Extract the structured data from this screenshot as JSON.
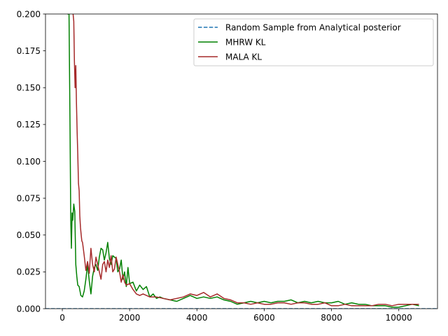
{
  "chart_data": {
    "type": "line",
    "title": "",
    "xlabel": "",
    "ylabel": "",
    "xlim": [
      -500,
      11150
    ],
    "ylim": [
      0,
      0.2
    ],
    "x_ticks": [
      0,
      2000,
      4000,
      6000,
      8000,
      10000
    ],
    "y_ticks": [
      0.0,
      0.025,
      0.05,
      0.075,
      0.1,
      0.125,
      0.15,
      0.175,
      0.2
    ],
    "x_tick_labels": [
      "0",
      "2000",
      "4000",
      "6000",
      "8000",
      "10000"
    ],
    "y_tick_labels": [
      "0.000",
      "0.025",
      "0.050",
      "0.075",
      "0.100",
      "0.125",
      "0.150",
      "0.175",
      "0.200"
    ],
    "grid": false,
    "legend_position": "top-right",
    "reference_line": {
      "name": "Random Sample from Analytical posterior",
      "value": 0.0,
      "style": "dashed",
      "color": "#1f77b4"
    },
    "series": [
      {
        "name": "MHRW KL",
        "color": "#008000",
        "x": [
          150,
          200,
          230,
          250,
          270,
          290,
          310,
          340,
          370,
          400,
          430,
          460,
          500,
          550,
          600,
          650,
          700,
          750,
          800,
          850,
          900,
          950,
          1000,
          1050,
          1100,
          1150,
          1200,
          1250,
          1300,
          1350,
          1400,
          1450,
          1500,
          1550,
          1600,
          1650,
          1700,
          1750,
          1800,
          1850,
          1900,
          1950,
          2000,
          2100,
          2200,
          2300,
          2400,
          2500,
          2600,
          2700,
          2800,
          2900,
          3000,
          3200,
          3400,
          3600,
          3800,
          4000,
          4200,
          4400,
          4600,
          4800,
          5000,
          5200,
          5400,
          5600,
          5800,
          6000,
          6200,
          6400,
          6600,
          6800,
          7000,
          7200,
          7400,
          7600,
          7800,
          8000,
          8200,
          8400,
          8600,
          8800,
          9000,
          9200,
          9400,
          9600,
          9800,
          10000,
          10200,
          10400,
          10600
        ],
        "values": [
          0.2,
          0.2,
          0.12,
          0.06,
          0.041,
          0.065,
          0.06,
          0.071,
          0.066,
          0.03,
          0.022,
          0.016,
          0.015,
          0.009,
          0.008,
          0.012,
          0.02,
          0.03,
          0.019,
          0.01,
          0.022,
          0.028,
          0.03,
          0.026,
          0.035,
          0.041,
          0.04,
          0.033,
          0.038,
          0.045,
          0.034,
          0.03,
          0.036,
          0.035,
          0.034,
          0.025,
          0.027,
          0.033,
          0.02,
          0.025,
          0.015,
          0.028,
          0.017,
          0.018,
          0.012,
          0.016,
          0.013,
          0.015,
          0.008,
          0.01,
          0.007,
          0.008,
          0.007,
          0.006,
          0.005,
          0.007,
          0.009,
          0.007,
          0.008,
          0.007,
          0.008,
          0.006,
          0.005,
          0.003,
          0.004,
          0.005,
          0.004,
          0.005,
          0.004,
          0.005,
          0.005,
          0.006,
          0.004,
          0.005,
          0.004,
          0.005,
          0.004,
          0.004,
          0.005,
          0.003,
          0.004,
          0.003,
          0.003,
          0.002,
          0.002,
          0.002,
          0.001,
          0.001,
          0.002,
          0.003,
          0.002
        ]
      },
      {
        "name": "MALA KL",
        "color": "#a52a2a",
        "x": [
          320,
          340,
          360,
          380,
          400,
          420,
          440,
          460,
          480,
          500,
          520,
          540,
          560,
          580,
          600,
          650,
          700,
          750,
          800,
          850,
          900,
          950,
          1000,
          1050,
          1100,
          1150,
          1200,
          1250,
          1300,
          1350,
          1400,
          1450,
          1500,
          1550,
          1600,
          1650,
          1700,
          1750,
          1800,
          1850,
          1900,
          2000,
          2100,
          2200,
          2300,
          2400,
          2500,
          2600,
          2800,
          3000,
          3200,
          3400,
          3600,
          3800,
          4000,
          4200,
          4400,
          4600,
          4800,
          5000,
          5200,
          5400,
          5600,
          5800,
          6000,
          6200,
          6400,
          6600,
          6800,
          7000,
          7200,
          7400,
          7600,
          7800,
          8000,
          8200,
          8400,
          8600,
          8800,
          9000,
          9200,
          9400,
          9600,
          9800,
          10000,
          10200,
          10400,
          10600
        ],
        "values": [
          0.2,
          0.195,
          0.168,
          0.15,
          0.165,
          0.14,
          0.12,
          0.105,
          0.085,
          0.08,
          0.063,
          0.055,
          0.05,
          0.046,
          0.045,
          0.036,
          0.026,
          0.032,
          0.024,
          0.041,
          0.03,
          0.025,
          0.035,
          0.03,
          0.025,
          0.02,
          0.03,
          0.032,
          0.025,
          0.033,
          0.028,
          0.036,
          0.025,
          0.027,
          0.035,
          0.03,
          0.025,
          0.018,
          0.023,
          0.018,
          0.016,
          0.017,
          0.013,
          0.01,
          0.009,
          0.01,
          0.009,
          0.008,
          0.008,
          0.007,
          0.006,
          0.007,
          0.008,
          0.01,
          0.009,
          0.011,
          0.008,
          0.01,
          0.007,
          0.006,
          0.004,
          0.004,
          0.003,
          0.004,
          0.003,
          0.003,
          0.004,
          0.004,
          0.003,
          0.004,
          0.004,
          0.003,
          0.003,
          0.004,
          0.002,
          0.002,
          0.003,
          0.002,
          0.002,
          0.002,
          0.002,
          0.003,
          0.003,
          0.002,
          0.003,
          0.003,
          0.003,
          0.003
        ]
      }
    ]
  }
}
